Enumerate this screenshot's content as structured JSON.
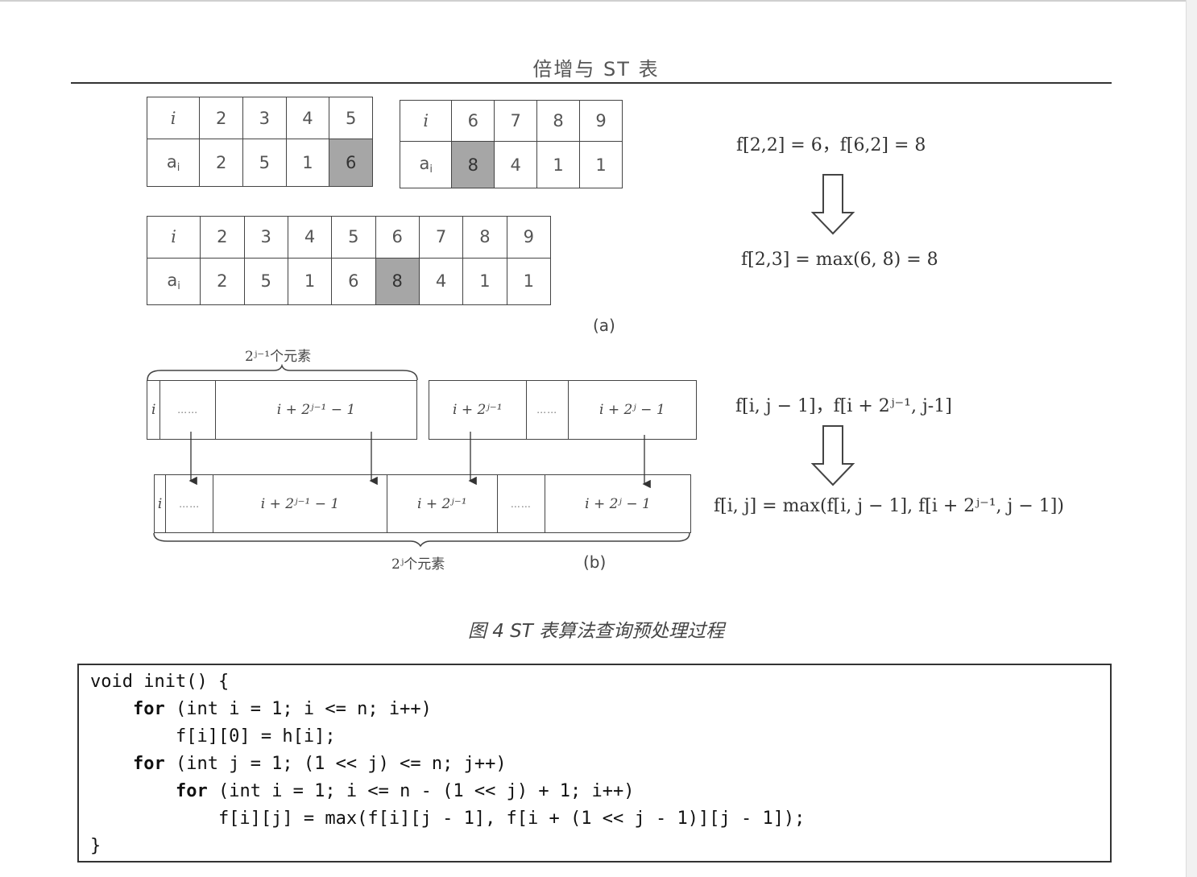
{
  "header": {
    "title": "倍增与 ST 表"
  },
  "figure_a": {
    "table_left": {
      "index_label": "i",
      "value_label": "a",
      "indices": [
        "2",
        "3",
        "4",
        "5"
      ],
      "values": [
        "2",
        "5",
        "1",
        "6"
      ],
      "highlight": "6"
    },
    "table_right": {
      "index_label": "i",
      "value_label": "a",
      "indices": [
        "6",
        "7",
        "8",
        "9"
      ],
      "values": [
        "8",
        "4",
        "1",
        "1"
      ],
      "highlight": "8"
    },
    "table_merged": {
      "index_label": "i",
      "value_label": "a",
      "indices": [
        "2",
        "3",
        "4",
        "5",
        "6",
        "7",
        "8",
        "9"
      ],
      "values": [
        "2",
        "5",
        "1",
        "6",
        "8",
        "4",
        "1",
        "1"
      ],
      "highlight": "8"
    },
    "sub_i": "i",
    "eq_top": "f[2,2] = 6，f[6,2] = 8",
    "eq_bottom": "f[2,3] = max(6, 8) = 8",
    "label": "(a)"
  },
  "figure_b": {
    "top_brace_label": "2ʲ⁻¹个元素",
    "top_cells_left": [
      "i",
      "……",
      "i + 2ʲ⁻¹ − 1"
    ],
    "top_cells_right": [
      "i + 2ʲ⁻¹",
      "……",
      "i + 2ʲ − 1"
    ],
    "bottom_cells": [
      "i",
      "……",
      "i + 2ʲ⁻¹ − 1",
      "i + 2ʲ⁻¹",
      "……",
      "i + 2ʲ − 1"
    ],
    "bottom_brace_label": "2ʲ个元素",
    "eq_top": "f[i, j − 1]，f[i + 2ʲ⁻¹, j-1]",
    "eq_bottom": "f[i, j] = max(f[i, j − 1], f[i + 2ʲ⁻¹, j − 1])",
    "label": "(b)"
  },
  "caption": "图 4 ST 表算法查询预处理过程",
  "code": {
    "lines": [
      "void init() {",
      "    for (int i = 1; i <= n; i++)",
      "        f[i][0] = h[i];",
      "    for (int j = 1; (1 << j) <= n; j++)",
      "        for (int i = 1; i <= n - (1 << j) + 1; i++)",
      "            f[i][j] = max(f[i][j - 1], f[i + (1 << j - 1)][j - 1]);",
      "}"
    ]
  }
}
